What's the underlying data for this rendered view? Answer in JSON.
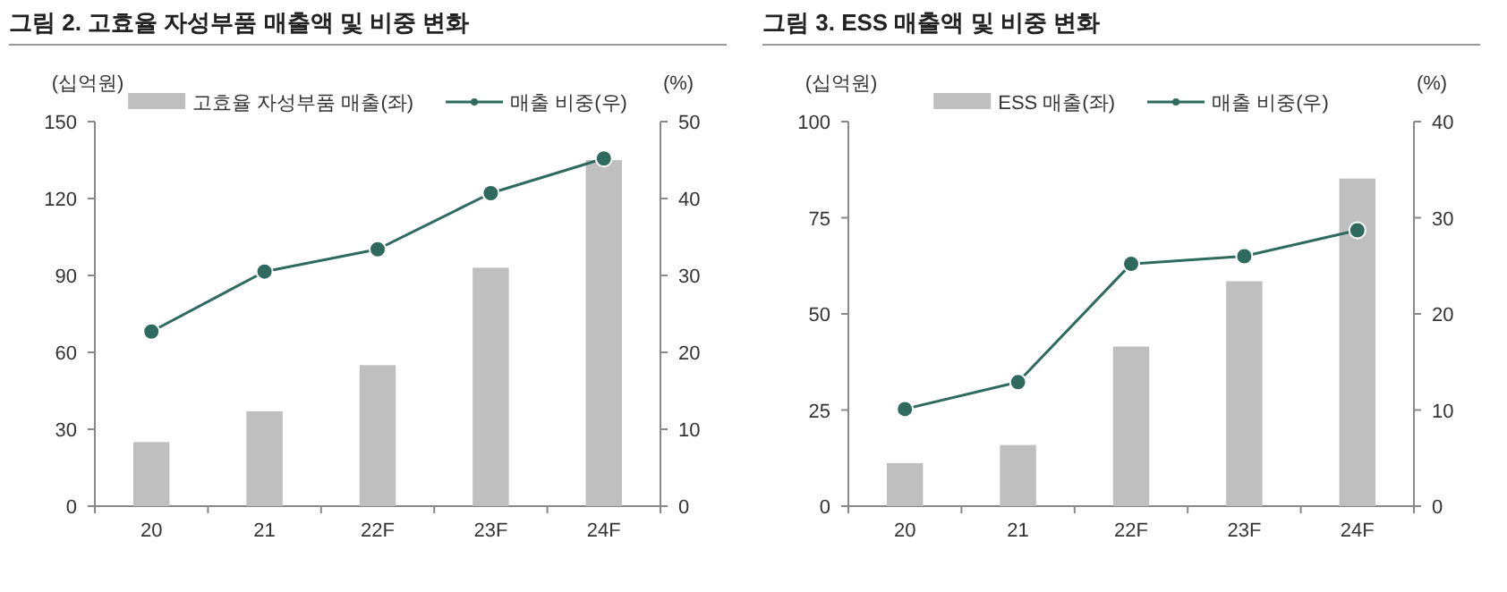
{
  "chart_data": [
    {
      "type": "bar",
      "title": "그림 2. 고효율 자성부품 매출액 및 비중 변화",
      "ylabel": "(십억원)",
      "y2label": "(%)",
      "categories": [
        "20",
        "21",
        "22F",
        "23F",
        "24F"
      ],
      "series": [
        {
          "name": "고효율 자성부품 매출(좌)",
          "color": "#bfbfbf",
          "values": [
            25,
            37,
            55,
            93,
            135
          ]
        },
        {
          "name": "매출 비중(우)",
          "type": "line",
          "axis": "y2",
          "color": "#2e6b5e",
          "marker": "circle",
          "values": [
            22.7,
            30.5,
            33.4,
            40.7,
            45.2
          ]
        }
      ],
      "ylim": [
        0,
        150
      ],
      "yticks": [
        0,
        30,
        60,
        90,
        120,
        150
      ],
      "y2lim": [
        0,
        50
      ],
      "y2ticks": [
        0,
        10,
        20,
        30,
        40,
        50
      ],
      "legend": "top"
    },
    {
      "type": "bar",
      "title": "그림 3. ESS 매출액 및 비중 변화",
      "ylabel": "(십억원)",
      "y2label": "(%)",
      "categories": [
        "20",
        "21",
        "22F",
        "23F",
        "24F"
      ],
      "series": [
        {
          "name": "ESS 매출(좌)",
          "color": "#bfbfbf",
          "values": [
            11.2,
            15.9,
            41.5,
            58.5,
            85.2
          ]
        },
        {
          "name": "매출 비중(우)",
          "type": "line",
          "axis": "y2",
          "color": "#2e6b5e",
          "marker": "circle",
          "values": [
            10.1,
            12.9,
            25.2,
            26.0,
            28.7
          ]
        }
      ],
      "ylim": [
        0,
        100
      ],
      "yticks": [
        0,
        25,
        50,
        75,
        100
      ],
      "y2lim": [
        0,
        40
      ],
      "y2ticks": [
        0,
        10,
        20,
        30,
        40
      ],
      "legend": "top"
    }
  ]
}
